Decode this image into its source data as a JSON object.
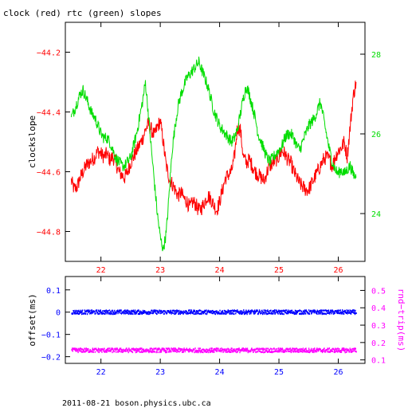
{
  "title": "clock (red) rtc (green) slopes",
  "footer": "2011-08-21 boson.physics.ubc.ca",
  "colors": {
    "clock": "#ff0000",
    "rtc": "#00dd00",
    "offset": "#0000ff",
    "roundtrip": "#ff00ff",
    "axis": "#000000"
  },
  "chart_data": [
    {
      "type": "line",
      "name": "slopes",
      "ylabel": "clockslope",
      "y2label": "",
      "xlim": [
        21.4,
        26.45
      ],
      "ylim": [
        -44.9,
        -44.1
      ],
      "y2lim": [
        22.8,
        28.8
      ],
      "x_ticks": [
        22,
        23,
        24,
        25,
        26
      ],
      "y_ticks": [
        -44.8,
        -44.6,
        -44.4,
        -44.2
      ],
      "y2_ticks": [
        24,
        26,
        28
      ],
      "series": [
        {
          "name": "clock",
          "axis": "left",
          "x": [
            21.5,
            21.55,
            21.6,
            21.65,
            21.7,
            21.75,
            21.8,
            21.85,
            21.9,
            21.95,
            22.0,
            22.05,
            22.1,
            22.15,
            22.2,
            22.25,
            22.3,
            22.35,
            22.4,
            22.45,
            22.5,
            22.55,
            22.6,
            22.65,
            22.7,
            22.75,
            22.8,
            22.85,
            22.9,
            22.95,
            23.0,
            23.05,
            23.1,
            23.15,
            23.2,
            23.25,
            23.3,
            23.35,
            23.4,
            23.45,
            23.5,
            23.55,
            23.6,
            23.65,
            23.7,
            23.75,
            23.8,
            23.85,
            23.9,
            23.95,
            24.0,
            24.05,
            24.1,
            24.15,
            24.2,
            24.25,
            24.3,
            24.35,
            24.4,
            24.45,
            24.5,
            24.55,
            24.6,
            24.65,
            24.7,
            24.75,
            24.8,
            24.85,
            24.9,
            24.95,
            25.0,
            25.05,
            25.1,
            25.15,
            25.2,
            25.25,
            25.3,
            25.35,
            25.4,
            25.45,
            25.5,
            25.55,
            25.6,
            25.65,
            25.7,
            25.75,
            25.8,
            25.85,
            25.9,
            25.95,
            26.0,
            26.05,
            26.1,
            26.15,
            26.2,
            26.25,
            26.3
          ],
          "values": [
            -44.63,
            -44.66,
            -44.65,
            -44.62,
            -44.6,
            -44.58,
            -44.57,
            -44.56,
            -44.55,
            -44.53,
            -44.54,
            -44.55,
            -44.54,
            -44.56,
            -44.55,
            -44.57,
            -44.6,
            -44.61,
            -44.62,
            -44.6,
            -44.57,
            -44.55,
            -44.53,
            -44.51,
            -44.49,
            -44.46,
            -44.44,
            -44.46,
            -44.48,
            -44.45,
            -44.43,
            -44.5,
            -44.58,
            -44.62,
            -44.64,
            -44.66,
            -44.68,
            -44.67,
            -44.69,
            -44.7,
            -44.72,
            -44.7,
            -44.71,
            -44.73,
            -44.72,
            -44.7,
            -44.68,
            -44.69,
            -44.71,
            -44.73,
            -44.7,
            -44.66,
            -44.62,
            -44.61,
            -44.6,
            -44.55,
            -44.45,
            -44.46,
            -44.55,
            -44.57,
            -44.56,
            -44.58,
            -44.6,
            -44.61,
            -44.62,
            -44.63,
            -44.6,
            -44.58,
            -44.57,
            -44.56,
            -44.55,
            -44.53,
            -44.54,
            -44.56,
            -44.57,
            -44.6,
            -44.62,
            -44.64,
            -44.65,
            -44.66,
            -44.66,
            -44.64,
            -44.62,
            -44.6,
            -44.58,
            -44.56,
            -44.55,
            -44.56,
            -44.58,
            -44.55,
            -44.53,
            -44.52,
            -44.5,
            -44.55,
            -44.45,
            -44.35,
            -44.3
          ]
        },
        {
          "name": "rtc",
          "axis": "right",
          "x": [
            21.5,
            21.55,
            21.6,
            21.65,
            21.7,
            21.75,
            21.8,
            21.85,
            21.9,
            21.95,
            22.0,
            22.05,
            22.1,
            22.15,
            22.2,
            22.25,
            22.3,
            22.35,
            22.4,
            22.45,
            22.5,
            22.55,
            22.6,
            22.65,
            22.7,
            22.75,
            22.8,
            22.85,
            22.9,
            22.95,
            23.0,
            23.05,
            23.1,
            23.15,
            23.2,
            23.25,
            23.3,
            23.35,
            23.4,
            23.45,
            23.5,
            23.55,
            23.6,
            23.65,
            23.7,
            23.75,
            23.8,
            23.85,
            23.9,
            23.95,
            24.0,
            24.05,
            24.1,
            24.15,
            24.2,
            24.25,
            24.3,
            24.35,
            24.4,
            24.45,
            24.5,
            24.55,
            24.6,
            24.65,
            24.7,
            24.75,
            24.8,
            24.85,
            24.9,
            24.95,
            25.0,
            25.05,
            25.1,
            25.15,
            25.2,
            25.25,
            25.3,
            25.35,
            25.4,
            25.45,
            25.5,
            25.55,
            25.6,
            25.65,
            25.7,
            25.75,
            25.8,
            25.85,
            25.9,
            25.95,
            26.0,
            26.05,
            26.1,
            26.15,
            26.2,
            26.25,
            26.3
          ],
          "values": [
            26.4,
            26.6,
            26.8,
            27.0,
            27.1,
            26.9,
            26.7,
            26.5,
            26.4,
            26.2,
            26.0,
            25.9,
            25.9,
            25.8,
            25.6,
            25.4,
            25.3,
            25.2,
            25.2,
            25.3,
            25.4,
            25.7,
            26.0,
            26.4,
            26.8,
            27.3,
            26.5,
            25.6,
            24.8,
            24.0,
            23.4,
            23.1,
            23.5,
            24.5,
            25.6,
            26.2,
            26.7,
            27.0,
            27.2,
            27.4,
            27.5,
            27.6,
            27.7,
            27.8,
            27.6,
            27.4,
            27.2,
            26.9,
            26.6,
            26.4,
            26.2,
            26.1,
            26.0,
            25.9,
            25.8,
            25.9,
            26.1,
            26.5,
            26.9,
            27.2,
            27.0,
            26.7,
            26.4,
            26.0,
            25.8,
            25.6,
            25.4,
            25.3,
            25.4,
            25.5,
            25.6,
            25.7,
            25.9,
            26.0,
            26.0,
            25.9,
            25.7,
            25.6,
            25.8,
            26.0,
            26.2,
            26.3,
            26.4,
            26.6,
            26.8,
            26.4,
            26.0,
            25.6,
            25.3,
            25.1,
            25.0,
            25.1,
            25.0,
            25.1,
            25.2,
            25.0,
            24.9
          ]
        }
      ]
    },
    {
      "type": "scatter",
      "name": "offset-roundtrip",
      "ylabel": "offset(ms)",
      "y2label": "rnd−trip(ms)",
      "xlim": [
        21.4,
        26.45
      ],
      "ylim": [
        -0.23,
        0.16
      ],
      "y2lim": [
        0.08,
        0.58
      ],
      "x_ticks": [
        22,
        23,
        24,
        25,
        26
      ],
      "y_ticks": [
        -0.2,
        -0.1,
        0,
        0.1
      ],
      "y2_ticks": [
        0.1,
        0.2,
        0.3,
        0.4,
        0.5
      ],
      "series": [
        {
          "name": "offset",
          "axis": "left",
          "x_range": [
            21.5,
            26.3
          ],
          "center": 0.0,
          "spread": 0.009
        },
        {
          "name": "roundtrip",
          "axis": "right",
          "x_range": [
            21.5,
            26.3
          ],
          "center": 0.155,
          "spread": 0.012
        }
      ]
    }
  ]
}
